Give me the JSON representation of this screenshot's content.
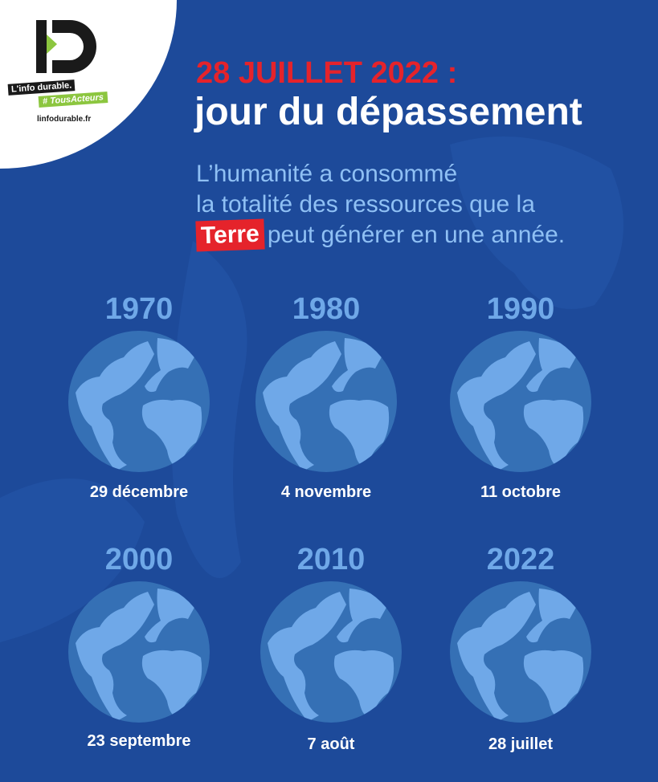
{
  "logo": {
    "mark": "ID",
    "tagline": "L'info durable.",
    "hashtag": "# TousActeurs",
    "site": "linfodurable.fr"
  },
  "header": {
    "title_date": "28 JUILLET 2022 :",
    "title_main": "jour du dépassement",
    "subtitle_line1": "L’humanité a consommé",
    "subtitle_line2": "la totalité des ressources que la",
    "subtitle_highlight": "Terre",
    "subtitle_line3": "peut générer en une année."
  },
  "colors": {
    "background": "#1d4a9a",
    "accent_red": "#e5232b",
    "year_blue": "#6fa8e8",
    "ocean": "#3570b5",
    "land": "#6fa8e8",
    "logo_green": "#8cc63f"
  },
  "timeline": [
    {
      "year": "1970",
      "date": "29 décembre",
      "icon": "globe-icon"
    },
    {
      "year": "1980",
      "date": "4 novembre",
      "icon": "globe-icon"
    },
    {
      "year": "1990",
      "date": "11 octobre",
      "icon": "globe-icon"
    },
    {
      "year": "2000",
      "date": "23 septembre",
      "icon": "globe-icon"
    },
    {
      "year": "2010",
      "date": "7 août",
      "icon": "globe-icon"
    },
    {
      "year": "2022",
      "date": "28 juillet",
      "icon": "globe-icon"
    }
  ]
}
